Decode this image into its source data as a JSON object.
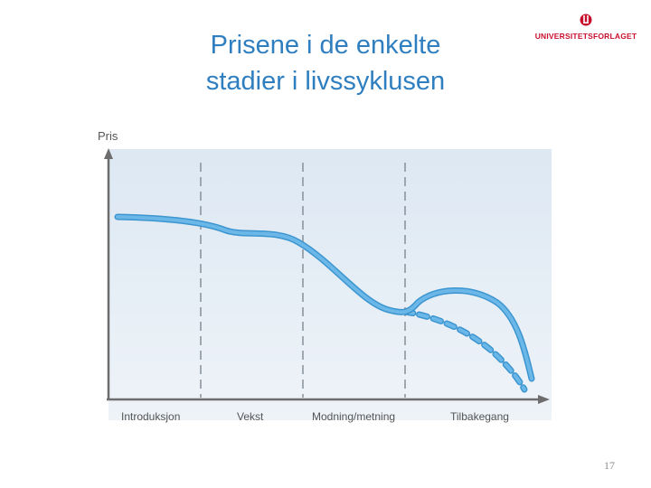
{
  "slide": {
    "title_line1": "Prisene i de enkelte",
    "title_line2": "stadier i livssyklusen",
    "page_number": "17"
  },
  "logo": {
    "text": "UNIVERSITETSFORLAGET",
    "icon": "publisher-logo-icon",
    "color": "#c8102e"
  },
  "diagram": {
    "y_axis_label": "Pris",
    "stages": [
      "Introduksjon",
      "Vekst",
      "Modning/metning",
      "Tilbakegang"
    ],
    "curves": [
      {
        "id": "price-curve",
        "style": "solid"
      },
      {
        "id": "price-curve-alternative",
        "style": "dashed"
      }
    ],
    "colors": {
      "curve": "#6bb8e8",
      "curve_edge": "#3d95d0",
      "panel": "#e6eef7",
      "axis": "#6d6d6d",
      "divider": "#8c96a0"
    }
  }
}
